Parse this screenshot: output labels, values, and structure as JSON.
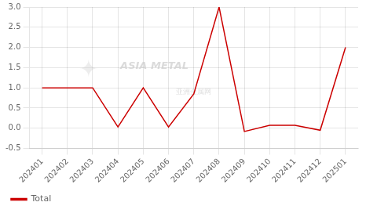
{
  "chart_data": {
    "type": "line",
    "categories": [
      "202401",
      "202402",
      "202403",
      "202404",
      "202405",
      "202406",
      "202407",
      "202408",
      "202409",
      "202410",
      "202411",
      "202412",
      "202501"
    ],
    "series": [
      {
        "name": "Total",
        "color": "#cc0000",
        "values": [
          1.0,
          1.0,
          1.0,
          0.03,
          1.0,
          0.03,
          0.85,
          3.0,
          -0.08,
          0.07,
          0.07,
          -0.05,
          2.0
        ]
      }
    ],
    "ylim": [
      -0.5,
      3.0
    ],
    "yticks": [
      -0.5,
      {
        "value": 0.0,
        "label": "0.0"
      },
      0.5,
      {
        "value": 1.0,
        "label": "1.0"
      },
      1.5,
      {
        "value": 2.0,
        "label": "2.0"
      },
      2.5,
      {
        "value": 3.0,
        "label": "3.0"
      }
    ],
    "grid": true,
    "legend": "bottom",
    "annotations": [
      "✦",
      "ASIA METAL",
      "亚洲金属网"
    ]
  }
}
